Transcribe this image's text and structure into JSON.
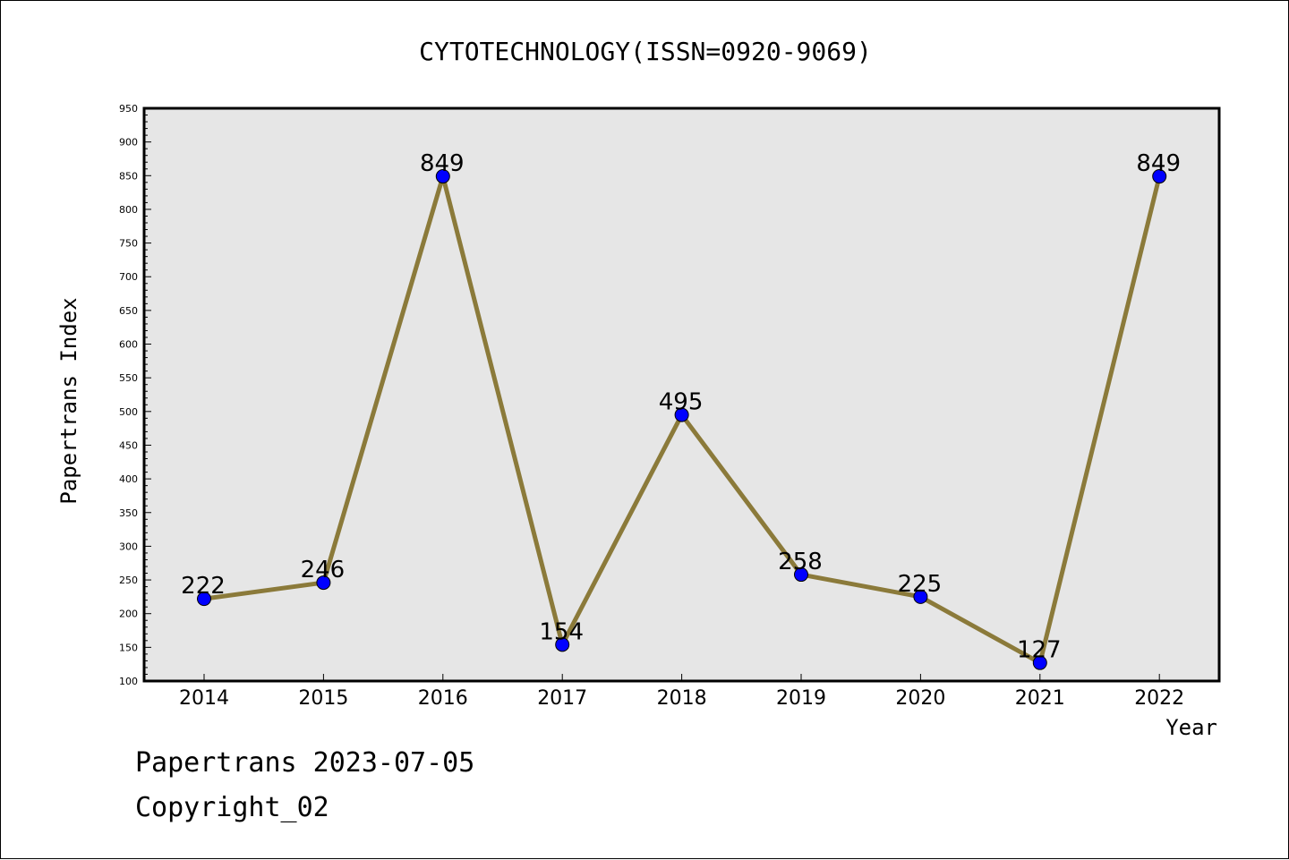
{
  "chart_data": {
    "type": "line",
    "title": "CYTOTECHNOLOGY(ISSN=0920-9069)",
    "xlabel": "Year",
    "ylabel": "Papertrans Index",
    "categories": [
      "2014",
      "2015",
      "2016",
      "2017",
      "2018",
      "2019",
      "2020",
      "2021",
      "2022"
    ],
    "values": [
      222,
      246,
      849,
      154,
      495,
      258,
      225,
      127,
      849
    ],
    "ylim": [
      100,
      950
    ],
    "yticks": [
      100,
      150,
      200,
      250,
      300,
      350,
      400,
      450,
      500,
      550,
      600,
      650,
      700,
      750,
      800,
      850,
      900,
      950
    ],
    "grid": false,
    "colors": {
      "line": "#8b7a3a",
      "marker": "#0000ff",
      "plot_bg": "#e6e6e6"
    }
  },
  "footer": {
    "date_text": "Papertrans 2023-07-05",
    "copyright_text": "Copyright_02"
  }
}
